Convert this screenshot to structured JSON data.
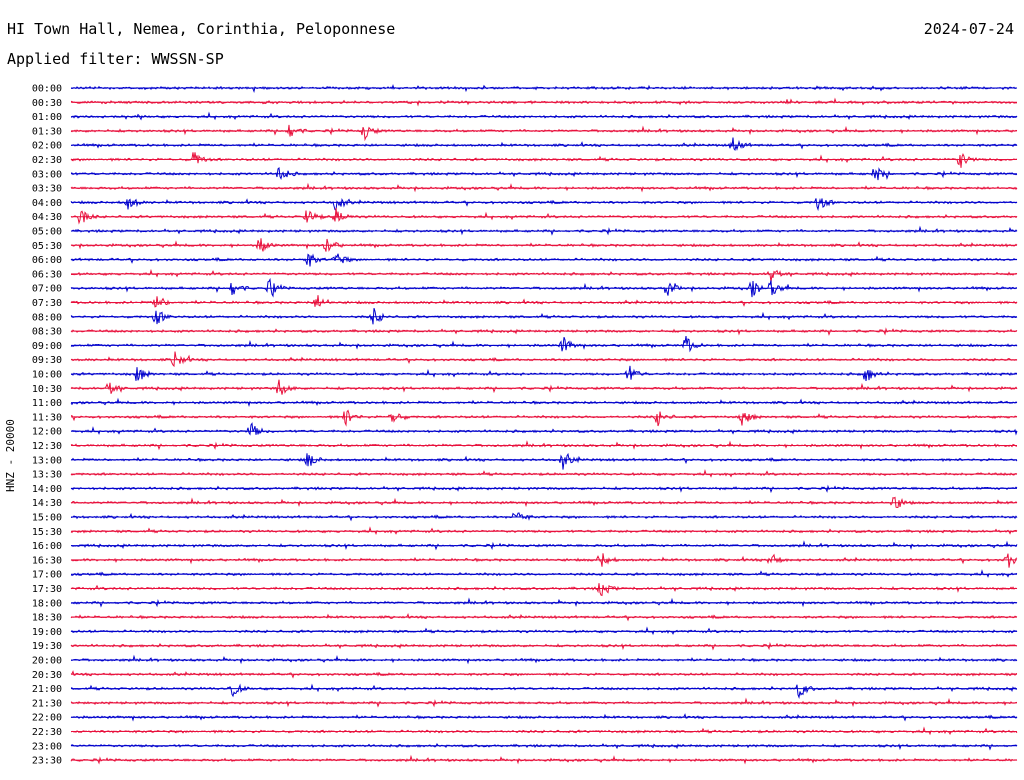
{
  "header": {
    "station": "HI Town Hall, Nemea, Corinthia, Peloponnese",
    "date": "2024-07-24",
    "filter_label": "Applied filter: WWSSN-SP"
  },
  "axis_label": "HNZ - 20000",
  "chart_data": {
    "type": "line",
    "title": "HI Town Hall, Nemea, Corinthia, Peloponnese",
    "subtitle": "Applied filter: WWSSN-SP",
    "ylabel": "HNZ - 20000",
    "xlabel": "",
    "row_labels": [
      "00:00",
      "00:30",
      "01:00",
      "01:30",
      "02:00",
      "02:30",
      "03:00",
      "03:30",
      "04:00",
      "04:30",
      "05:00",
      "05:30",
      "06:00",
      "06:30",
      "07:00",
      "07:30",
      "08:00",
      "08:30",
      "09:00",
      "09:30",
      "10:00",
      "10:30",
      "11:00",
      "11:30",
      "12:00",
      "12:30",
      "13:00",
      "13:30",
      "14:00",
      "14:30",
      "15:00",
      "15:30",
      "16:00",
      "16:30",
      "17:00",
      "17:30",
      "18:00",
      "18:30",
      "19:00",
      "19:30",
      "20:00",
      "20:30",
      "21:00",
      "21:30",
      "22:00",
      "22:30",
      "23:00",
      "23:30"
    ],
    "series_colors": [
      "#0000cc",
      "#e8103c"
    ],
    "grid": false,
    "legend": "none",
    "events": [
      {
        "row": "01:30",
        "position": 0.23
      },
      {
        "row": "01:30",
        "position": 0.31
      },
      {
        "row": "02:00",
        "position": 0.7
      },
      {
        "row": "02:30",
        "position": 0.13
      },
      {
        "row": "02:30",
        "position": 0.94
      },
      {
        "row": "03:00",
        "position": 0.22
      },
      {
        "row": "03:00",
        "position": 0.85
      },
      {
        "row": "04:00",
        "position": 0.06
      },
      {
        "row": "04:00",
        "position": 0.28
      },
      {
        "row": "04:00",
        "position": 0.79
      },
      {
        "row": "04:30",
        "position": 0.01
      },
      {
        "row": "04:30",
        "position": 0.25
      },
      {
        "row": "04:30",
        "position": 0.28
      },
      {
        "row": "05:30",
        "position": 0.2
      },
      {
        "row": "05:30",
        "position": 0.27
      },
      {
        "row": "06:00",
        "position": 0.25
      },
      {
        "row": "06:00",
        "position": 0.28
      },
      {
        "row": "06:30",
        "position": 0.74
      },
      {
        "row": "07:00",
        "position": 0.17
      },
      {
        "row": "07:00",
        "position": 0.21
      },
      {
        "row": "07:00",
        "position": 0.63
      },
      {
        "row": "07:00",
        "position": 0.72
      },
      {
        "row": "07:00",
        "position": 0.74
      },
      {
        "row": "07:30",
        "position": 0.09
      },
      {
        "row": "07:30",
        "position": 0.26
      },
      {
        "row": "08:00",
        "position": 0.09
      },
      {
        "row": "08:00",
        "position": 0.32
      },
      {
        "row": "09:00",
        "position": 0.52
      },
      {
        "row": "09:00",
        "position": 0.65
      },
      {
        "row": "09:30",
        "position": 0.11
      },
      {
        "row": "10:00",
        "position": 0.07
      },
      {
        "row": "10:00",
        "position": 0.59
      },
      {
        "row": "10:00",
        "position": 0.84
      },
      {
        "row": "10:30",
        "position": 0.04
      },
      {
        "row": "10:30",
        "position": 0.22
      },
      {
        "row": "11:30",
        "position": 0.29
      },
      {
        "row": "11:30",
        "position": 0.34
      },
      {
        "row": "11:30",
        "position": 0.62
      },
      {
        "row": "11:30",
        "position": 0.71
      },
      {
        "row": "12:00",
        "position": 0.19
      },
      {
        "row": "13:00",
        "position": 0.25
      },
      {
        "row": "13:00",
        "position": 0.52
      },
      {
        "row": "14:30",
        "position": 0.87
      },
      {
        "row": "15:00",
        "position": 0.47
      },
      {
        "row": "16:30",
        "position": 0.56
      },
      {
        "row": "16:30",
        "position": 0.74
      },
      {
        "row": "16:30",
        "position": 0.99
      },
      {
        "row": "17:30",
        "position": 0.56
      },
      {
        "row": "21:00",
        "position": 0.17
      },
      {
        "row": "21:00",
        "position": 0.77
      }
    ]
  }
}
